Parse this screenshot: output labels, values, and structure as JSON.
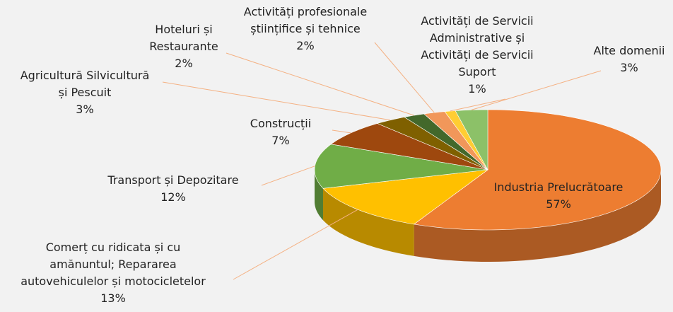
{
  "chart_data": {
    "type": "pie3d",
    "categories": [
      "Industria Prelucrătoare",
      "Comerț cu ridicata și cu amănuntul; Repararea autovehiculelor și motocicletelor",
      "Transport și Depozitare",
      "Construcții",
      "Agricultură Silvicultură și Pescuit",
      "Hoteluri și Restaurante",
      "Activități profesionale științifice și tehnice",
      "Activități de Servicii Administrative și Activități de Servicii Suport",
      "Alte domenii"
    ],
    "values": [
      57,
      13,
      12,
      7,
      3,
      2,
      2,
      1,
      3
    ],
    "value_labels": [
      "57%",
      "13%",
      "12%",
      "7%",
      "3%",
      "2%",
      "2%",
      "1%",
      "3%"
    ],
    "colors": [
      "#ED7D31",
      "#FFC000",
      "#70AD47",
      "#9E480E",
      "#7F6000",
      "#43682B",
      "#F1975A",
      "#FFCD33",
      "#8CC168"
    ]
  }
}
